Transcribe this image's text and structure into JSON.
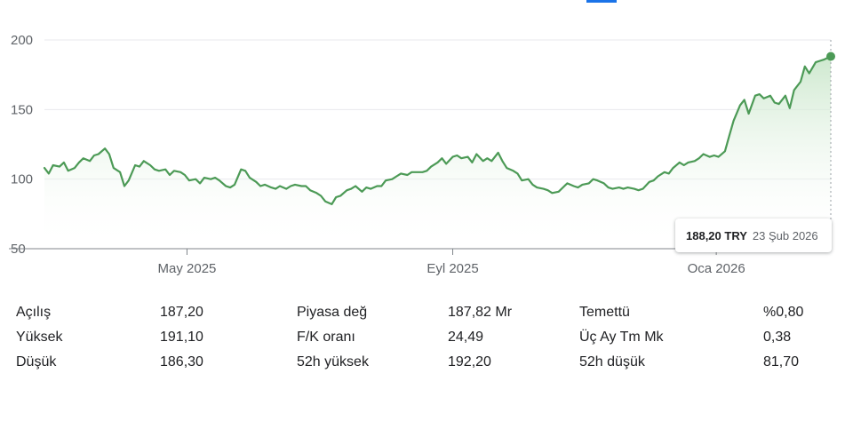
{
  "tooltip": {
    "price": "188,20 TRY",
    "date": "23 Şub 2026"
  },
  "colors": {
    "line": "#4c9a56",
    "fill_top": "#c8e6c9",
    "grid": "#e8eaed",
    "axis": "#5f6368",
    "tab_accent": "#1a73e8"
  },
  "chart_data": {
    "type": "area",
    "title": "",
    "xlabel": "",
    "ylabel": "",
    "currency": "TRY",
    "ylim": [
      50,
      200
    ],
    "y_ticks": [
      "200",
      "150",
      "100",
      "50"
    ],
    "y_tick_values": [
      200,
      150,
      100,
      50
    ],
    "x_ticks": [
      "May 2025",
      "Eyl 2025",
      "Oca 2026"
    ],
    "x_tick_dates": [
      "2025-05-01",
      "2025-09-01",
      "2026-01-01"
    ],
    "x_range": [
      "2025-02-24",
      "2026-02-23"
    ],
    "grid": true,
    "series": [
      {
        "name": "",
        "points": [
          [
            "2025-02-24",
            108
          ],
          [
            "2025-02-26",
            104
          ],
          [
            "2025-02-28",
            110
          ],
          [
            "2025-03-03",
            109
          ],
          [
            "2025-03-05",
            112
          ],
          [
            "2025-03-07",
            106
          ],
          [
            "2025-03-10",
            108
          ],
          [
            "2025-03-12",
            112
          ],
          [
            "2025-03-14",
            115
          ],
          [
            "2025-03-17",
            113
          ],
          [
            "2025-03-19",
            117
          ],
          [
            "2025-03-21",
            118
          ],
          [
            "2025-03-24",
            122
          ],
          [
            "2025-03-26",
            118
          ],
          [
            "2025-03-28",
            108
          ],
          [
            "2025-03-31",
            105
          ],
          [
            "2025-04-02",
            95
          ],
          [
            "2025-04-04",
            99
          ],
          [
            "2025-04-07",
            110
          ],
          [
            "2025-04-09",
            109
          ],
          [
            "2025-04-11",
            113
          ],
          [
            "2025-04-14",
            110
          ],
          [
            "2025-04-16",
            107
          ],
          [
            "2025-04-18",
            106
          ],
          [
            "2025-04-21",
            107
          ],
          [
            "2025-04-23",
            103
          ],
          [
            "2025-04-25",
            106
          ],
          [
            "2025-04-28",
            105
          ],
          [
            "2025-04-30",
            103
          ],
          [
            "2025-05-02",
            99
          ],
          [
            "2025-05-05",
            100
          ],
          [
            "2025-05-07",
            97
          ],
          [
            "2025-05-09",
            101
          ],
          [
            "2025-05-12",
            100
          ],
          [
            "2025-05-14",
            101
          ],
          [
            "2025-05-16",
            99
          ],
          [
            "2025-05-19",
            95
          ],
          [
            "2025-05-21",
            94
          ],
          [
            "2025-05-23",
            96
          ],
          [
            "2025-05-26",
            107
          ],
          [
            "2025-05-28",
            106
          ],
          [
            "2025-05-30",
            101
          ],
          [
            "2025-06-02",
            98
          ],
          [
            "2025-06-04",
            95
          ],
          [
            "2025-06-06",
            96
          ],
          [
            "2025-06-09",
            94
          ],
          [
            "2025-06-11",
            93
          ],
          [
            "2025-06-13",
            95
          ],
          [
            "2025-06-16",
            93
          ],
          [
            "2025-06-18",
            95
          ],
          [
            "2025-06-20",
            96
          ],
          [
            "2025-06-23",
            95
          ],
          [
            "2025-06-25",
            95
          ],
          [
            "2025-06-27",
            92
          ],
          [
            "2025-06-30",
            90
          ],
          [
            "2025-07-02",
            88
          ],
          [
            "2025-07-04",
            84
          ],
          [
            "2025-07-07",
            82
          ],
          [
            "2025-07-09",
            87
          ],
          [
            "2025-07-11",
            88
          ],
          [
            "2025-07-14",
            92
          ],
          [
            "2025-07-16",
            93
          ],
          [
            "2025-07-18",
            95
          ],
          [
            "2025-07-21",
            91
          ],
          [
            "2025-07-23",
            94
          ],
          [
            "2025-07-25",
            93
          ],
          [
            "2025-07-28",
            95
          ],
          [
            "2025-07-30",
            95
          ],
          [
            "2025-08-01",
            99
          ],
          [
            "2025-08-04",
            100
          ],
          [
            "2025-08-06",
            102
          ],
          [
            "2025-08-08",
            104
          ],
          [
            "2025-08-11",
            103
          ],
          [
            "2025-08-13",
            105
          ],
          [
            "2025-08-15",
            105
          ],
          [
            "2025-08-18",
            105
          ],
          [
            "2025-08-20",
            106
          ],
          [
            "2025-08-22",
            109
          ],
          [
            "2025-08-25",
            112
          ],
          [
            "2025-08-27",
            115
          ],
          [
            "2025-08-29",
            111
          ],
          [
            "2025-09-01",
            116
          ],
          [
            "2025-09-03",
            117
          ],
          [
            "2025-09-05",
            115
          ],
          [
            "2025-09-08",
            116
          ],
          [
            "2025-09-10",
            112
          ],
          [
            "2025-09-12",
            118
          ],
          [
            "2025-09-15",
            113
          ],
          [
            "2025-09-17",
            115
          ],
          [
            "2025-09-19",
            113
          ],
          [
            "2025-09-22",
            119
          ],
          [
            "2025-09-24",
            113
          ],
          [
            "2025-09-26",
            108
          ],
          [
            "2025-09-29",
            106
          ],
          [
            "2025-10-01",
            104
          ],
          [
            "2025-10-03",
            99
          ],
          [
            "2025-10-06",
            100
          ],
          [
            "2025-10-08",
            96
          ],
          [
            "2025-10-10",
            94
          ],
          [
            "2025-10-13",
            93
          ],
          [
            "2025-10-15",
            92
          ],
          [
            "2025-10-17",
            90
          ],
          [
            "2025-10-20",
            91
          ],
          [
            "2025-10-22",
            94
          ],
          [
            "2025-10-24",
            97
          ],
          [
            "2025-10-27",
            95
          ],
          [
            "2025-10-29",
            94
          ],
          [
            "2025-10-31",
            96
          ],
          [
            "2025-11-03",
            97
          ],
          [
            "2025-11-05",
            100
          ],
          [
            "2025-11-07",
            99
          ],
          [
            "2025-11-10",
            97
          ],
          [
            "2025-11-12",
            94
          ],
          [
            "2025-11-14",
            93
          ],
          [
            "2025-11-17",
            94
          ],
          [
            "2025-11-19",
            93
          ],
          [
            "2025-11-21",
            94
          ],
          [
            "2025-11-24",
            93
          ],
          [
            "2025-11-26",
            92
          ],
          [
            "2025-11-28",
            93
          ],
          [
            "2025-12-01",
            98
          ],
          [
            "2025-12-03",
            99
          ],
          [
            "2025-12-05",
            102
          ],
          [
            "2025-12-08",
            105
          ],
          [
            "2025-12-10",
            104
          ],
          [
            "2025-12-12",
            108
          ],
          [
            "2025-12-15",
            112
          ],
          [
            "2025-12-17",
            110
          ],
          [
            "2025-12-19",
            112
          ],
          [
            "2025-12-22",
            113
          ],
          [
            "2025-12-24",
            115
          ],
          [
            "2025-12-26",
            118
          ],
          [
            "2025-12-29",
            116
          ],
          [
            "2025-12-31",
            117
          ],
          [
            "2026-01-02",
            116
          ],
          [
            "2026-01-05",
            120
          ],
          [
            "2026-01-07",
            131
          ],
          [
            "2026-01-09",
            142
          ],
          [
            "2026-01-12",
            153
          ],
          [
            "2026-01-14",
            157
          ],
          [
            "2026-01-16",
            147
          ],
          [
            "2026-01-19",
            160
          ],
          [
            "2026-01-21",
            161
          ],
          [
            "2026-01-23",
            158
          ],
          [
            "2026-01-26",
            160
          ],
          [
            "2026-01-28",
            155
          ],
          [
            "2026-01-30",
            154
          ],
          [
            "2026-02-02",
            160
          ],
          [
            "2026-02-04",
            151
          ],
          [
            "2026-02-06",
            164
          ],
          [
            "2026-02-09",
            170
          ],
          [
            "2026-02-11",
            181
          ],
          [
            "2026-02-13",
            176
          ],
          [
            "2026-02-16",
            184
          ],
          [
            "2026-02-18",
            185
          ],
          [
            "2026-02-20",
            186
          ],
          [
            "2026-02-23",
            188.2
          ]
        ]
      }
    ]
  },
  "stats": {
    "col1": [
      {
        "label": "Açılış",
        "value": "187,20"
      },
      {
        "label": "Yüksek",
        "value": "191,10"
      },
      {
        "label": "Düşük",
        "value": "186,30"
      }
    ],
    "col2": [
      {
        "label": "Piyasa değ",
        "value": "187,82 Mr"
      },
      {
        "label": "F/K oranı",
        "value": "24,49"
      },
      {
        "label": "52h yüksek",
        "value": "192,20"
      }
    ],
    "col3": [
      {
        "label": "Temettü",
        "value": "%0,80"
      },
      {
        "label": "Üç Ay Tm Mk",
        "value": "0,38"
      },
      {
        "label": "52h düşük",
        "value": "81,70"
      }
    ]
  }
}
